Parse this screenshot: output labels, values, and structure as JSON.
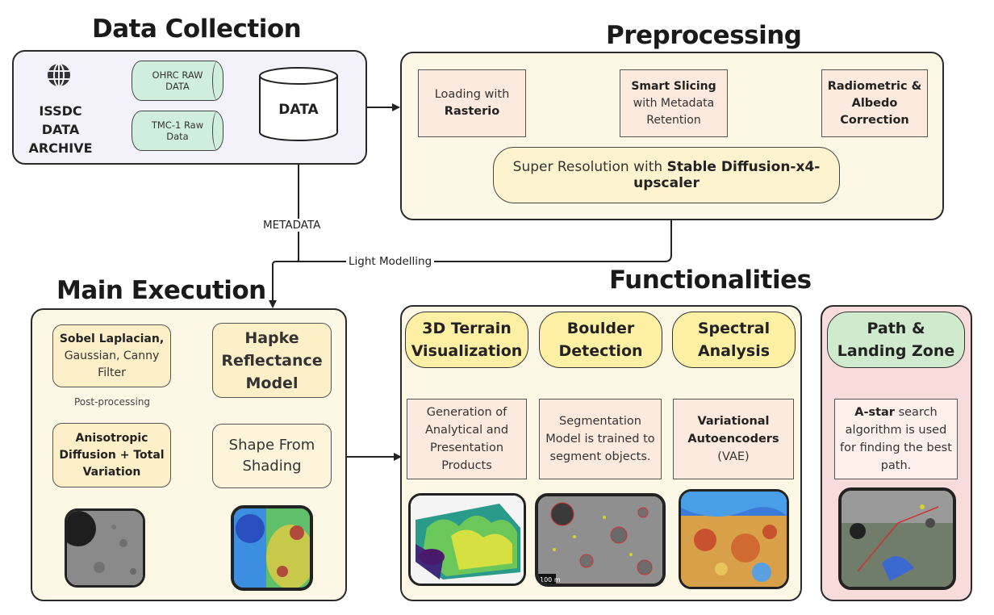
{
  "sections": {
    "data_collection": "Data Collection",
    "preprocessing": "Preprocessing",
    "main_execution": "Main Execution",
    "functionalities": "Functionalities"
  },
  "data_collection": {
    "archive": [
      "ISSDC",
      "DATA",
      "ARCHIVE"
    ],
    "ohrc": [
      "OHRC RAW",
      "DATA"
    ],
    "tmc": [
      "TMC-1 Raw",
      "Data"
    ],
    "data": "DATA"
  },
  "preprocessing": {
    "loading": {
      "text": "Loading with",
      "bold": "Rasterio"
    },
    "slicing": {
      "bold": "Smart Slicing",
      "text": [
        "with Metadata",
        "Retention"
      ]
    },
    "radiometric": {
      "bold": [
        "Radiometric &",
        "Albedo",
        "Correction"
      ]
    },
    "superres": {
      "text": "Super Resolution with ",
      "bold": "Stable Diffusion-x4-upscaler"
    }
  },
  "connectors": {
    "metadata": "METADATA",
    "light_modelling": "Light Modelling",
    "post_processing": "Post-processing"
  },
  "main_execution": {
    "sobel": {
      "bold": "Sobel Laplacian,",
      "text": [
        "Gaussian, Canny",
        "Filter"
      ]
    },
    "anisotropic": {
      "bold": [
        "Anisotropic",
        "Diffusion + Total",
        "Variation"
      ]
    },
    "hapke": {
      "bold": [
        "Hapke",
        "Reflectance",
        "Model"
      ]
    },
    "shape": [
      "Shape From",
      "Shading"
    ]
  },
  "functionalities": {
    "terrain": {
      "title": [
        "3D Terrain",
        "Visualization"
      ],
      "desc": [
        "Generation of",
        "Analytical and",
        "Presentation",
        "Products"
      ]
    },
    "boulder": {
      "title": [
        "Boulder",
        "Detection"
      ],
      "desc": [
        "Segmentation",
        "Model is trained to",
        "segment objects."
      ]
    },
    "spectral": {
      "title": [
        "Spectral",
        "Analysis"
      ],
      "desc_bold": [
        "Variational",
        "Autoencoders"
      ],
      "desc": "(VAE)"
    },
    "path": {
      "title": [
        "Path &",
        "Landing Zone"
      ],
      "desc_bold": "A-star",
      "desc_first": " search",
      "desc": [
        "algorithm is used",
        "for finding the best",
        "path."
      ]
    }
  },
  "image_labels": {
    "boulder_scale": "100 m"
  },
  "colors": {
    "data_collection_bg": "#f3f2fb",
    "preprocessing_bg": "#fdf8e6",
    "main_bg": "#fdf8e6",
    "functionalities_bg": "#fdf8e6",
    "path_bg": "#f8dcdc",
    "cylinder": "#cfeedd",
    "step_box": "#fbeadd",
    "round_box": "#fdf0c8",
    "title_pill": "#fdf0a4",
    "path_pill": "#cfeacc"
  },
  "icons": [
    "globe-icon"
  ]
}
